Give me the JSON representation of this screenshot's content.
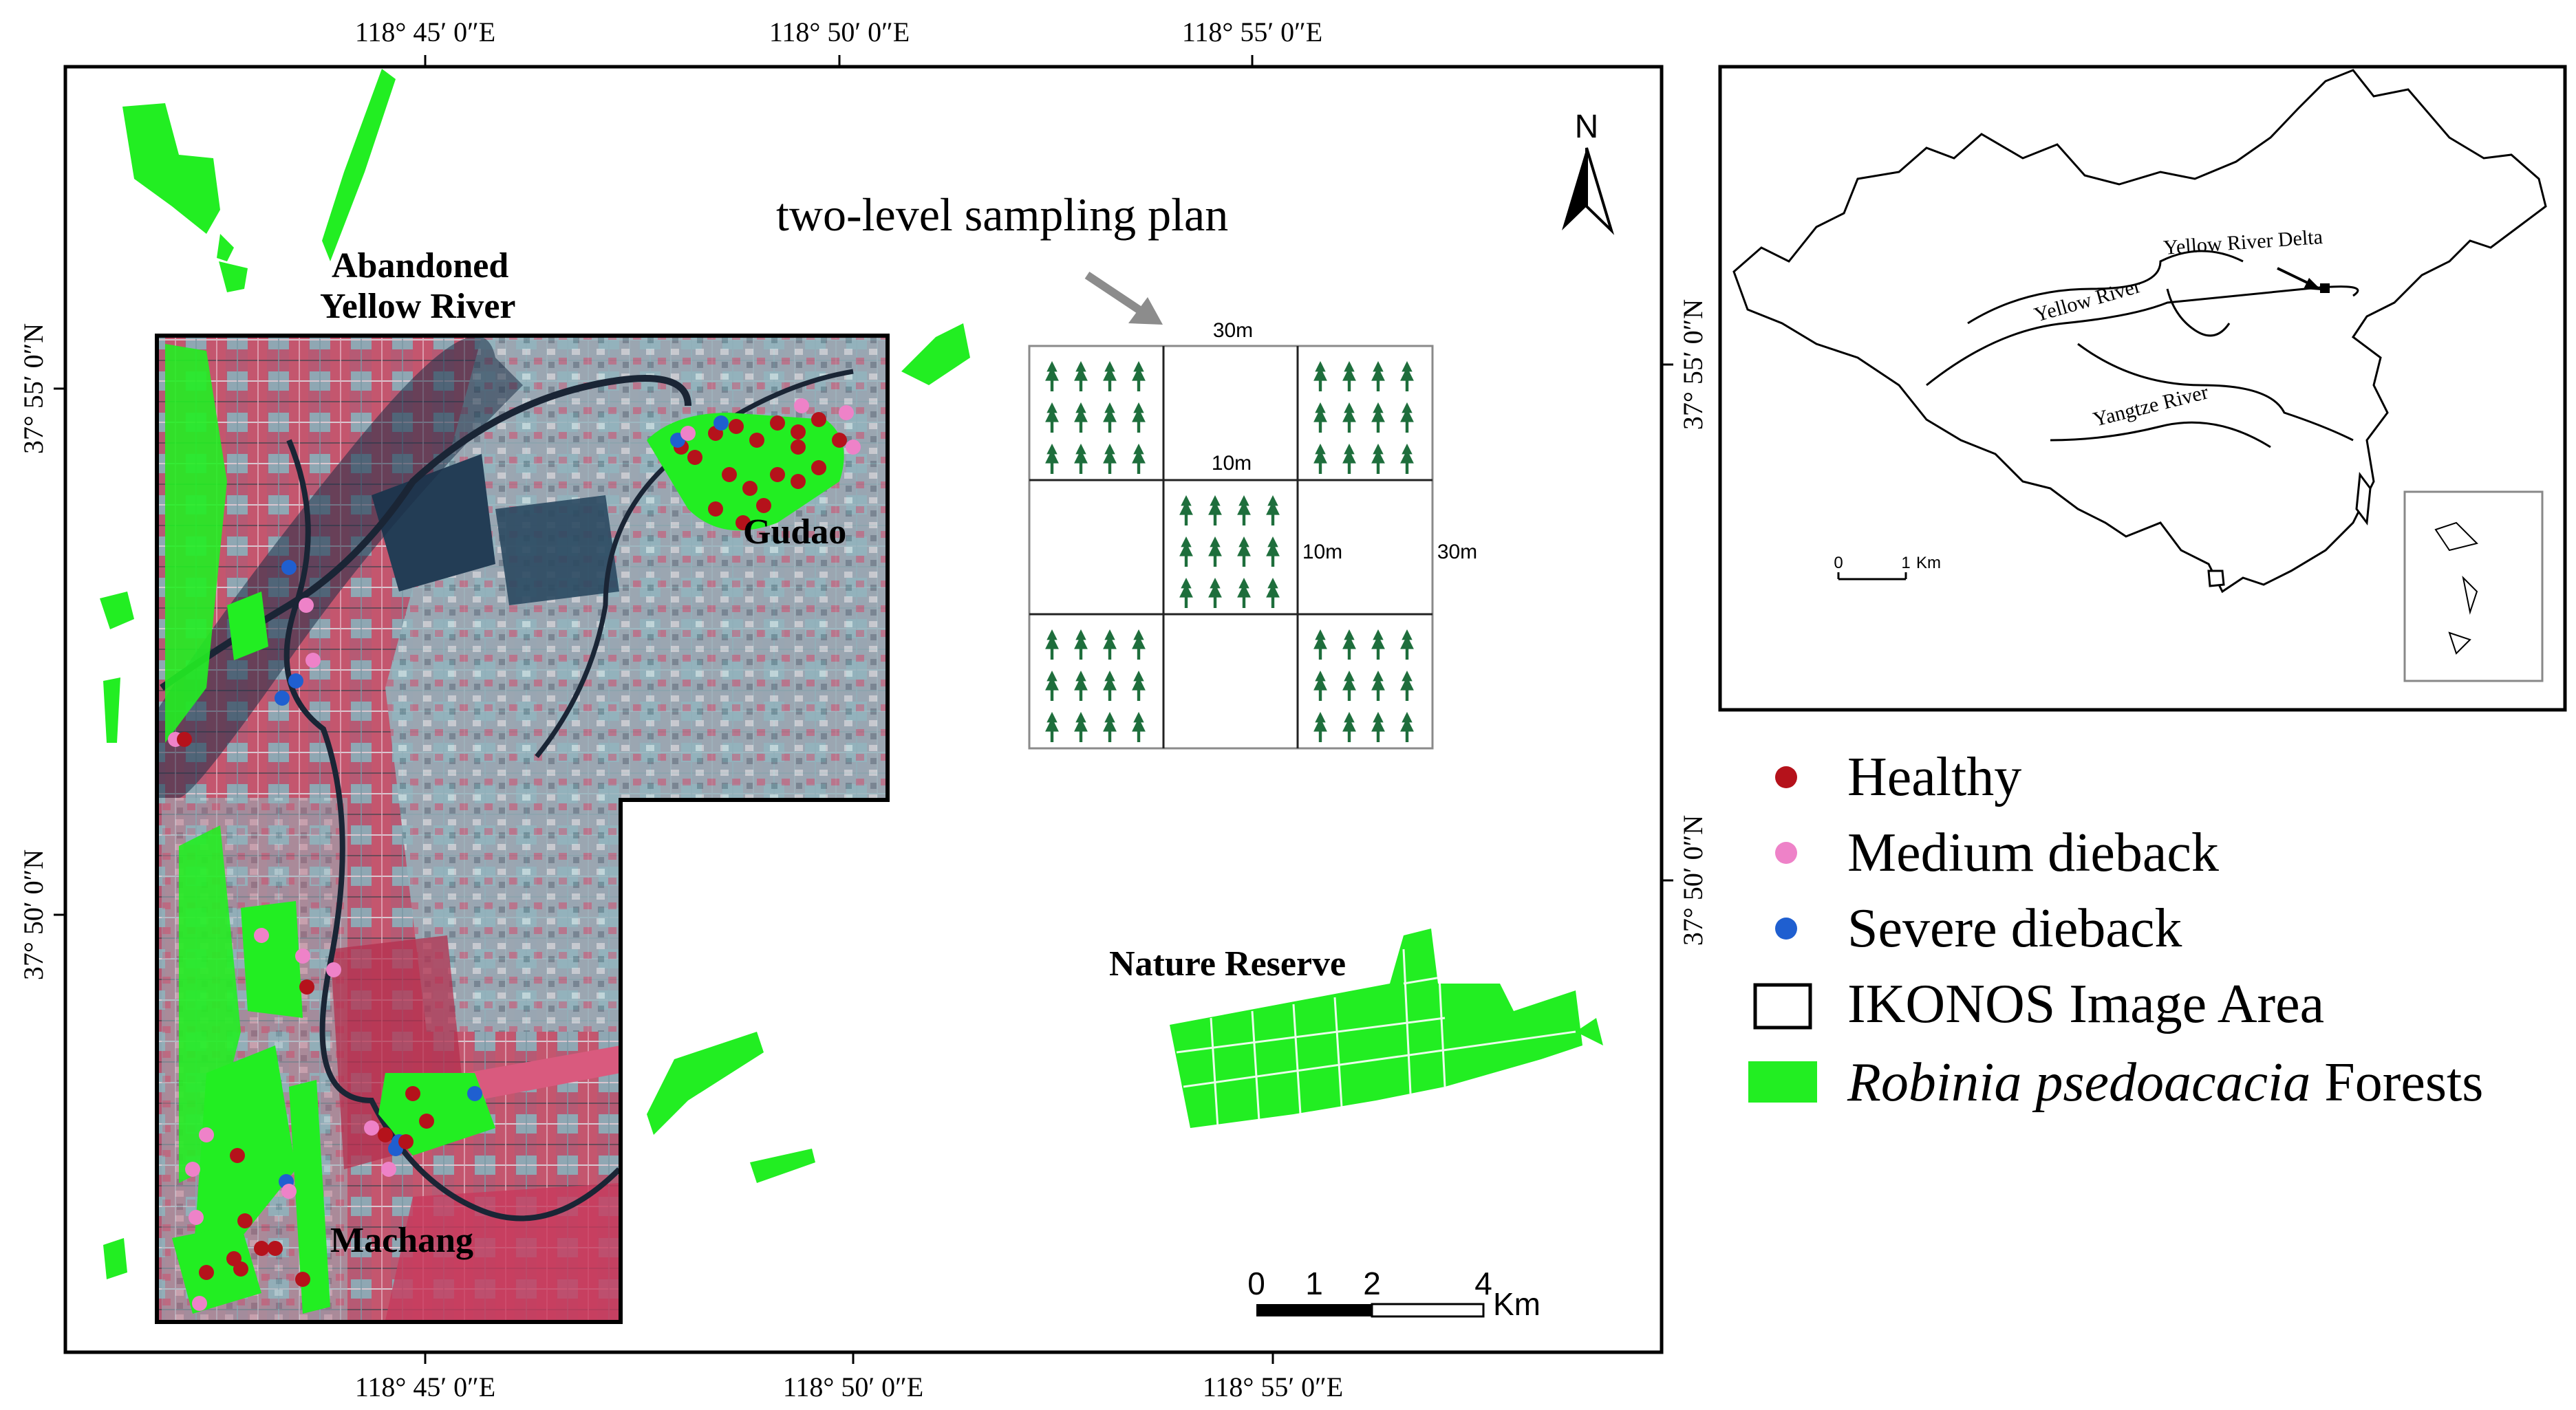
{
  "main_map": {
    "top_longitude_labels": [
      "118° 45′ 0″E",
      "118° 50′ 0″E",
      "118° 55′ 0″E"
    ],
    "bottom_longitude_labels": [
      "118° 45′ 0″E",
      "118° 50′ 0″E",
      "118° 55′ 0″E"
    ],
    "left_latitude_labels": [
      "37° 55′ 0″N",
      "37° 50′ 0″N"
    ],
    "right_latitude_labels": [
      "37° 55′ 0″N",
      "37° 50′ 0″N"
    ],
    "place_labels": {
      "abandoned_line1": "Abandoned",
      "abandoned_line2": "Yellow River",
      "gudao": "Gudao",
      "machang": "Machang",
      "nature_reserve": "Nature Reserve"
    },
    "north_arrow": "N",
    "scale_bar": {
      "ticks": [
        "0",
        "1",
        "2",
        "4"
      ],
      "unit": "Km"
    }
  },
  "sampling_plan": {
    "title": "two-level sampling plan",
    "top_dim": "30m",
    "inner_dim": "10m",
    "center_side_dim": "10m",
    "right_dim": "30m"
  },
  "inset_map": {
    "labels": {
      "yellow_river_delta": "Yellow River Delta",
      "yellow_river": "Yellow River",
      "yangtze_river": "Yangtze River"
    },
    "scale_bar": {
      "ticks": [
        "0",
        "1"
      ],
      "unit": "Km"
    }
  },
  "legend": {
    "healthy": "Healthy",
    "medium": "Medium dieback",
    "severe": "Severe dieback",
    "ikonos": "IKONOS Image Area",
    "forest_italic": "Robinia psedoacacia",
    "forest_rest": " Forests"
  },
  "colors": {
    "healthy": "#b5121b",
    "medium": "#ee82c8",
    "severe": "#1f5fd0",
    "forest": "#22ee22",
    "imagery_red": "#b84a68",
    "imagery_cyan": "#7ab8c2",
    "tree": "#1e6e3c"
  }
}
